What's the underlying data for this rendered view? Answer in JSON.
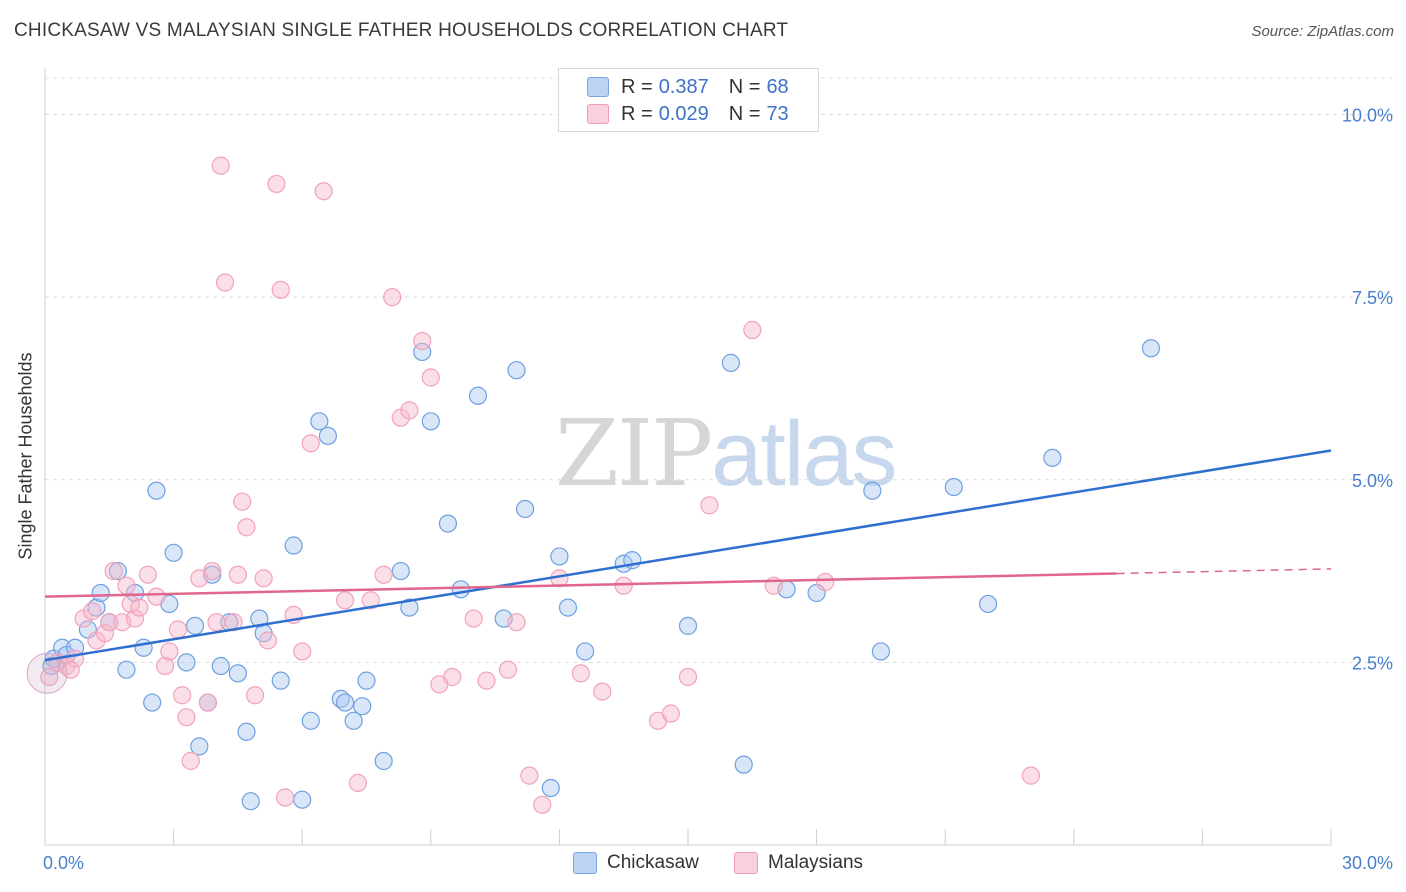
{
  "title": "CHICKASAW VS MALAYSIAN SINGLE FATHER HOUSEHOLDS CORRELATION CHART",
  "source": "Source: ZipAtlas.com",
  "watermark": {
    "part1": "ZIP",
    "part2": "atlas"
  },
  "legend": {
    "rows": [
      {
        "r_label": "R =",
        "r_value": "0.387",
        "n_label": "N =",
        "n_value": "68",
        "color": "#a9c8f0"
      },
      {
        "r_label": "R =",
        "r_value": "0.029",
        "n_label": "N =",
        "n_value": "73",
        "color": "#f7b8cb"
      }
    ]
  },
  "bottom_legend": {
    "series1": "Chickasaw",
    "series2": "Malaysians"
  },
  "chart_data": {
    "type": "scatter",
    "ylabel": "Single Father Households",
    "xlim": [
      0,
      30
    ],
    "ylim": [
      0,
      10.5
    ],
    "x_ticks": [
      {
        "value": 0,
        "label": "0.0%"
      },
      {
        "value": 30,
        "label": "30.0%"
      }
    ],
    "y_ticks": [
      {
        "value": 2.5,
        "label": "2.5%"
      },
      {
        "value": 5.0,
        "label": "5.0%"
      },
      {
        "value": 7.5,
        "label": "7.5%"
      },
      {
        "value": 10.0,
        "label": "10.0%"
      }
    ],
    "grid": true,
    "series": [
      {
        "name": "Chickasaw",
        "color": "#6fa0e0",
        "line_color": "#2f6fd0",
        "trend": {
          "x": [
            0,
            30
          ],
          "y": [
            2.53,
            5.4
          ]
        },
        "points": [
          [
            0.2,
            2.55
          ],
          [
            0.4,
            2.7
          ],
          [
            0.5,
            2.6
          ],
          [
            0.7,
            2.7
          ],
          [
            1.0,
            2.95
          ],
          [
            1.2,
            3.25
          ],
          [
            1.3,
            3.45
          ],
          [
            1.5,
            3.05
          ],
          [
            1.7,
            3.75
          ],
          [
            1.9,
            2.4
          ],
          [
            2.1,
            3.45
          ],
          [
            2.3,
            2.7
          ],
          [
            2.5,
            1.95
          ],
          [
            2.6,
            4.85
          ],
          [
            2.9,
            3.3
          ],
          [
            3.0,
            4.0
          ],
          [
            3.3,
            2.5
          ],
          [
            3.5,
            3.0
          ],
          [
            3.6,
            1.35
          ],
          [
            3.8,
            1.95
          ],
          [
            3.9,
            3.7
          ],
          [
            4.1,
            2.45
          ],
          [
            4.3,
            3.05
          ],
          [
            4.5,
            2.35
          ],
          [
            4.7,
            1.55
          ],
          [
            4.8,
            0.6
          ],
          [
            5.0,
            3.1
          ],
          [
            5.1,
            2.9
          ],
          [
            5.5,
            2.25
          ],
          [
            5.8,
            4.1
          ],
          [
            6.0,
            0.62
          ],
          [
            6.2,
            1.7
          ],
          [
            6.4,
            5.8
          ],
          [
            6.6,
            5.6
          ],
          [
            6.9,
            2.0
          ],
          [
            7.0,
            1.95
          ],
          [
            7.2,
            1.7
          ],
          [
            7.4,
            1.9
          ],
          [
            7.5,
            2.25
          ],
          [
            7.9,
            1.15
          ],
          [
            8.3,
            3.75
          ],
          [
            8.5,
            3.25
          ],
          [
            8.8,
            6.75
          ],
          [
            9.0,
            5.8
          ],
          [
            9.4,
            4.4
          ],
          [
            9.7,
            3.5
          ],
          [
            10.1,
            6.15
          ],
          [
            10.7,
            3.1
          ],
          [
            11.0,
            6.5
          ],
          [
            11.2,
            4.6
          ],
          [
            11.8,
            0.78
          ],
          [
            12.0,
            3.95
          ],
          [
            12.2,
            3.25
          ],
          [
            12.6,
            2.65
          ],
          [
            13.5,
            3.85
          ],
          [
            13.7,
            3.9
          ],
          [
            15.0,
            3.0
          ],
          [
            16.0,
            6.6
          ],
          [
            16.3,
            1.1
          ],
          [
            17.3,
            3.5
          ],
          [
            18.0,
            3.45
          ],
          [
            19.3,
            4.85
          ],
          [
            19.5,
            2.65
          ],
          [
            21.2,
            4.9
          ],
          [
            22.0,
            3.3
          ],
          [
            23.5,
            5.3
          ],
          [
            25.8,
            6.8
          ],
          [
            0.15,
            2.45
          ]
        ]
      },
      {
        "name": "Malaysians",
        "color": "#f2a2bb",
        "line_color": "#e0658f",
        "trend": {
          "x": [
            0,
            30
          ],
          "y": [
            3.4,
            3.78
          ],
          "solid_until": 25.0
        },
        "points": [
          [
            0.1,
            2.3
          ],
          [
            0.3,
            2.5
          ],
          [
            0.5,
            2.45
          ],
          [
            0.7,
            2.55
          ],
          [
            0.9,
            3.1
          ],
          [
            1.1,
            3.2
          ],
          [
            1.2,
            2.8
          ],
          [
            1.4,
            2.9
          ],
          [
            1.5,
            3.05
          ],
          [
            1.6,
            3.75
          ],
          [
            1.8,
            3.05
          ],
          [
            1.9,
            3.55
          ],
          [
            2.0,
            3.3
          ],
          [
            2.1,
            3.1
          ],
          [
            2.2,
            3.25
          ],
          [
            2.4,
            3.7
          ],
          [
            2.6,
            3.4
          ],
          [
            2.8,
            2.45
          ],
          [
            2.9,
            2.65
          ],
          [
            3.1,
            2.95
          ],
          [
            3.2,
            2.05
          ],
          [
            3.3,
            1.75
          ],
          [
            3.4,
            1.15
          ],
          [
            3.6,
            3.65
          ],
          [
            3.8,
            1.95
          ],
          [
            3.9,
            3.75
          ],
          [
            4.0,
            3.05
          ],
          [
            4.1,
            9.3
          ],
          [
            4.2,
            7.7
          ],
          [
            4.4,
            3.05
          ],
          [
            4.5,
            3.7
          ],
          [
            4.6,
            4.7
          ],
          [
            4.7,
            4.35
          ],
          [
            4.9,
            2.05
          ],
          [
            5.1,
            3.65
          ],
          [
            5.2,
            2.8
          ],
          [
            5.4,
            9.05
          ],
          [
            5.5,
            7.6
          ],
          [
            5.6,
            0.65
          ],
          [
            5.8,
            3.15
          ],
          [
            6.0,
            2.65
          ],
          [
            6.2,
            5.5
          ],
          [
            6.5,
            8.95
          ],
          [
            7.0,
            3.35
          ],
          [
            7.3,
            0.85
          ],
          [
            7.6,
            3.35
          ],
          [
            7.9,
            3.7
          ],
          [
            8.1,
            7.5
          ],
          [
            8.3,
            5.85
          ],
          [
            8.5,
            5.95
          ],
          [
            8.8,
            6.9
          ],
          [
            9.0,
            6.4
          ],
          [
            9.2,
            2.2
          ],
          [
            9.5,
            2.3
          ],
          [
            10.0,
            3.1
          ],
          [
            10.3,
            2.25
          ],
          [
            10.8,
            2.4
          ],
          [
            11.0,
            3.05
          ],
          [
            11.3,
            0.95
          ],
          [
            11.6,
            0.55
          ],
          [
            12.0,
            3.65
          ],
          [
            12.5,
            2.35
          ],
          [
            13.0,
            2.1
          ],
          [
            13.5,
            3.55
          ],
          [
            14.3,
            1.7
          ],
          [
            14.6,
            1.8
          ],
          [
            15.0,
            2.3
          ],
          [
            15.5,
            4.65
          ],
          [
            16.5,
            7.05
          ],
          [
            17.0,
            3.55
          ],
          [
            18.2,
            3.6
          ],
          [
            23.0,
            0.95
          ],
          [
            0.6,
            2.4
          ]
        ]
      }
    ]
  }
}
